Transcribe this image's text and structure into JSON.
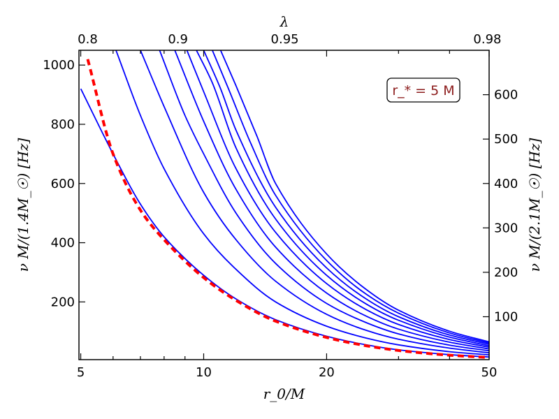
{
  "chart_data": {
    "type": "line",
    "xlabel": "r_0/M",
    "ylabel_left": "ν M/(1.4M_☉) [Hz]",
    "ylabel_right": "ν M/(2.1M_☉) [Hz]",
    "top_axis_label": "λ",
    "x_scale": "log",
    "xlim": [
      4.95,
      50
    ],
    "ylim_left": [
      5,
      1050
    ],
    "ylim_right": [
      3.3,
      700
    ],
    "grid": false,
    "x_ticks": [
      {
        "value": 5,
        "label": "5"
      },
      {
        "value": 10,
        "label": "10"
      },
      {
        "value": 20,
        "label": "20"
      },
      {
        "value": 50,
        "label": "50"
      }
    ],
    "x_minor_ticks": [
      6,
      7,
      8,
      9,
      30,
      40
    ],
    "y_left_ticks": [
      {
        "value": 200,
        "label": "200"
      },
      {
        "value": 400,
        "label": "400"
      },
      {
        "value": 600,
        "label": "600"
      },
      {
        "value": 800,
        "label": "800"
      },
      {
        "value": 1000,
        "label": "1000"
      }
    ],
    "y_right_ticks": [
      {
        "value": 100,
        "label": "100"
      },
      {
        "value": 200,
        "label": "200"
      },
      {
        "value": 300,
        "label": "300"
      },
      {
        "value": 400,
        "label": "400"
      },
      {
        "value": 500,
        "label": "500"
      },
      {
        "value": 600,
        "label": "600"
      }
    ],
    "top_ticks": [
      {
        "x": 5.2,
        "label": "0.8"
      },
      {
        "x": 8.65,
        "label": "0.9"
      },
      {
        "x": 15.8,
        "label": "0.95"
      },
      {
        "x": 49.5,
        "label": "0.98"
      }
    ],
    "annotation": {
      "label": "r_* = 5 M",
      "position": "top-right"
    },
    "series": [
      {
        "color": "#0000ff",
        "style": "solid",
        "x": [
          5.0,
          6.0,
          7.0,
          8.0,
          10.0,
          12.0,
          15.0,
          20.0,
          25.0,
          30.0,
          40.0,
          50.0
        ],
        "y": [
          920,
          700,
          530,
          420,
          290,
          210,
          140,
          84,
          55,
          38,
          22,
          14
        ]
      },
      {
        "color": "#0000ff",
        "style": "solid",
        "x": [
          6.1,
          7.0,
          8.0,
          10.0,
          12.0,
          15.0,
          20.0,
          25.0,
          30.0,
          40.0,
          50.0
        ],
        "y": [
          1050,
          830,
          650,
          430,
          310,
          200,
          118,
          78,
          55,
          32,
          21
        ]
      },
      {
        "color": "#0000ff",
        "style": "solid",
        "x": [
          7.0,
          8.0,
          10.0,
          12.0,
          15.0,
          20.0,
          25.0,
          30.0,
          40.0,
          50.0
        ],
        "y": [
          1050,
          860,
          570,
          410,
          270,
          158,
          104,
          74,
          44,
          28
        ]
      },
      {
        "color": "#0000ff",
        "style": "solid",
        "x": [
          7.8,
          9.0,
          10.0,
          12.0,
          15.0,
          20.0,
          25.0,
          30.0,
          40.0,
          50.0
        ],
        "y": [
          1050,
          830,
          700,
          500,
          330,
          195,
          130,
          92,
          54,
          35
        ]
      },
      {
        "color": "#0000ff",
        "style": "solid",
        "x": [
          8.5,
          10.0,
          12.0,
          15.0,
          20.0,
          25.0,
          30.0,
          40.0,
          50.0
        ],
        "y": [
          1050,
          810,
          580,
          385,
          230,
          152,
          108,
          64,
          41
        ]
      },
      {
        "color": "#0000ff",
        "style": "solid",
        "x": [
          9.1,
          10.0,
          12.0,
          15.0,
          20.0,
          25.0,
          30.0,
          40.0,
          50.0
        ],
        "y": [
          1050,
          910,
          650,
          435,
          262,
          174,
          124,
          73,
          47
        ]
      },
      {
        "color": "#0000ff",
        "style": "solid",
        "x": [
          9.6,
          10.5,
          12.0,
          15.0,
          20.0,
          25.0,
          30.0,
          40.0,
          50.0
        ],
        "y": [
          1050,
          940,
          720,
          480,
          290,
          193,
          138,
          81,
          52
        ]
      },
      {
        "color": "#0000ff",
        "style": "solid",
        "x": [
          10.0,
          11.0,
          12.0,
          15.0,
          20.0,
          25.0,
          30.0,
          40.0,
          50.0
        ],
        "y": [
          1050,
          920,
          780,
          520,
          315,
          210,
          150,
          88,
          57
        ]
      },
      {
        "color": "#0000ff",
        "style": "solid",
        "x": [
          10.5,
          11.5,
          13.0,
          15.0,
          20.0,
          25.0,
          30.0,
          40.0,
          50.0
        ],
        "y": [
          1050,
          920,
          740,
          560,
          340,
          226,
          162,
          95,
          61
        ]
      },
      {
        "color": "#0000ff",
        "style": "solid",
        "x": [
          11.0,
          12.0,
          13.5,
          15.0,
          20.0,
          25.0,
          30.0,
          40.0,
          50.0
        ],
        "y": [
          1050,
          930,
          760,
          600,
          362,
          242,
          172,
          101,
          65
        ]
      },
      {
        "color": "#ff0000",
        "style": "dashed",
        "x": [
          5.2,
          6.0,
          7.0,
          8.0,
          10.0,
          12.0,
          15.0,
          20.0,
          25.0,
          30.0,
          40.0,
          50.0
        ],
        "y": [
          1020,
          700,
          510,
          410,
          282,
          205,
          135,
          80,
          52,
          36,
          20,
          12
        ]
      }
    ]
  }
}
